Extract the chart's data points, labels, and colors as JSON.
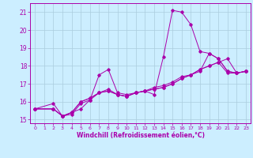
{
  "xlabel": "Windchill (Refroidissement éolien,°C)",
  "bg_color": "#cceeff",
  "line_color": "#aa00aa",
  "grid_color": "#aaccdd",
  "xlim": [
    -0.5,
    23.5
  ],
  "ylim": [
    14.8,
    21.5
  ],
  "yticks": [
    15,
    16,
    17,
    18,
    19,
    20,
    21
  ],
  "xticks": [
    0,
    1,
    2,
    3,
    4,
    5,
    6,
    7,
    8,
    9,
    10,
    11,
    12,
    13,
    14,
    15,
    16,
    17,
    18,
    19,
    20,
    21,
    22,
    23
  ],
  "series": [
    {
      "x": [
        0,
        2,
        3,
        4,
        5,
        6,
        7,
        8,
        9,
        10,
        11,
        12,
        13,
        14,
        15,
        16,
        17,
        18,
        19,
        20,
        21,
        22,
        23
      ],
      "y": [
        15.6,
        15.9,
        15.2,
        15.3,
        15.9,
        16.1,
        17.5,
        17.8,
        16.5,
        16.4,
        16.5,
        16.6,
        16.4,
        18.5,
        21.1,
        21.0,
        20.3,
        18.8,
        18.7,
        18.4,
        17.7,
        17.6,
        17.7
      ]
    },
    {
      "x": [
        0,
        2,
        3,
        4,
        5,
        6,
        7,
        8,
        9,
        10,
        11,
        12,
        13,
        14,
        15,
        16,
        17,
        18,
        19,
        20,
        21,
        22,
        23
      ],
      "y": [
        15.6,
        15.6,
        15.2,
        15.4,
        16.0,
        16.2,
        16.5,
        16.6,
        16.4,
        16.3,
        16.5,
        16.6,
        16.7,
        16.8,
        17.0,
        17.3,
        17.5,
        17.8,
        18.0,
        18.2,
        17.6,
        17.6,
        17.7
      ]
    },
    {
      "x": [
        0,
        2,
        3,
        4,
        5,
        6,
        7,
        8,
        9,
        10,
        11,
        12,
        13,
        14,
        15,
        16,
        17,
        18,
        19,
        20,
        21,
        22,
        23
      ],
      "y": [
        15.6,
        15.6,
        15.2,
        15.4,
        16.0,
        16.2,
        16.5,
        16.6,
        16.4,
        16.3,
        16.5,
        16.6,
        16.7,
        16.8,
        17.0,
        17.3,
        17.5,
        17.7,
        18.7,
        18.4,
        17.7,
        17.6,
        17.7
      ]
    },
    {
      "x": [
        0,
        2,
        3,
        4,
        5,
        6,
        7,
        8,
        9,
        10,
        11,
        12,
        13,
        14,
        15,
        16,
        17,
        18,
        19,
        20,
        21,
        22,
        23
      ],
      "y": [
        15.6,
        15.6,
        15.2,
        15.4,
        15.6,
        16.1,
        16.5,
        16.7,
        16.4,
        16.3,
        16.5,
        16.6,
        16.8,
        16.9,
        17.1,
        17.4,
        17.5,
        17.8,
        18.0,
        18.2,
        18.4,
        17.6,
        17.7
      ]
    }
  ]
}
